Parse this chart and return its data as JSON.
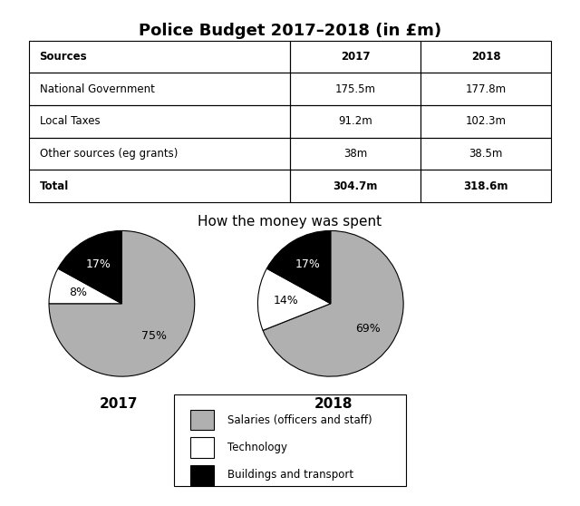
{
  "title": "Police Budget 2017–2018 (in £m)",
  "table_headers": [
    "Sources",
    "2017",
    "2018"
  ],
  "table_rows": [
    [
      "National Government",
      "175.5m",
      "177.8m"
    ],
    [
      "Local Taxes",
      "91.2m",
      "102.3m"
    ],
    [
      "Other sources (eg grants)",
      "38m",
      "38.5m"
    ],
    [
      "Total",
      "304.7m",
      "318.6m"
    ]
  ],
  "pie_title": "How the money was spent",
  "pie_2017": [
    75,
    8,
    17
  ],
  "pie_2018": [
    69,
    14,
    17
  ],
  "pie_labels_2017": [
    "75%",
    "8%",
    "17%"
  ],
  "pie_labels_2018": [
    "69%",
    "14%",
    "17%"
  ],
  "pie_colors": [
    "#b0b0b0",
    "#ffffff",
    "#000000"
  ],
  "pie_edge_color": "#000000",
  "pie_year_labels": [
    "2017",
    "2018"
  ],
  "legend_labels": [
    "Salaries (officers and staff)",
    "Technology",
    "Buildings and transport"
  ],
  "legend_colors": [
    "#b0b0b0",
    "#ffffff",
    "#000000"
  ],
  "background_color": "#ffffff"
}
